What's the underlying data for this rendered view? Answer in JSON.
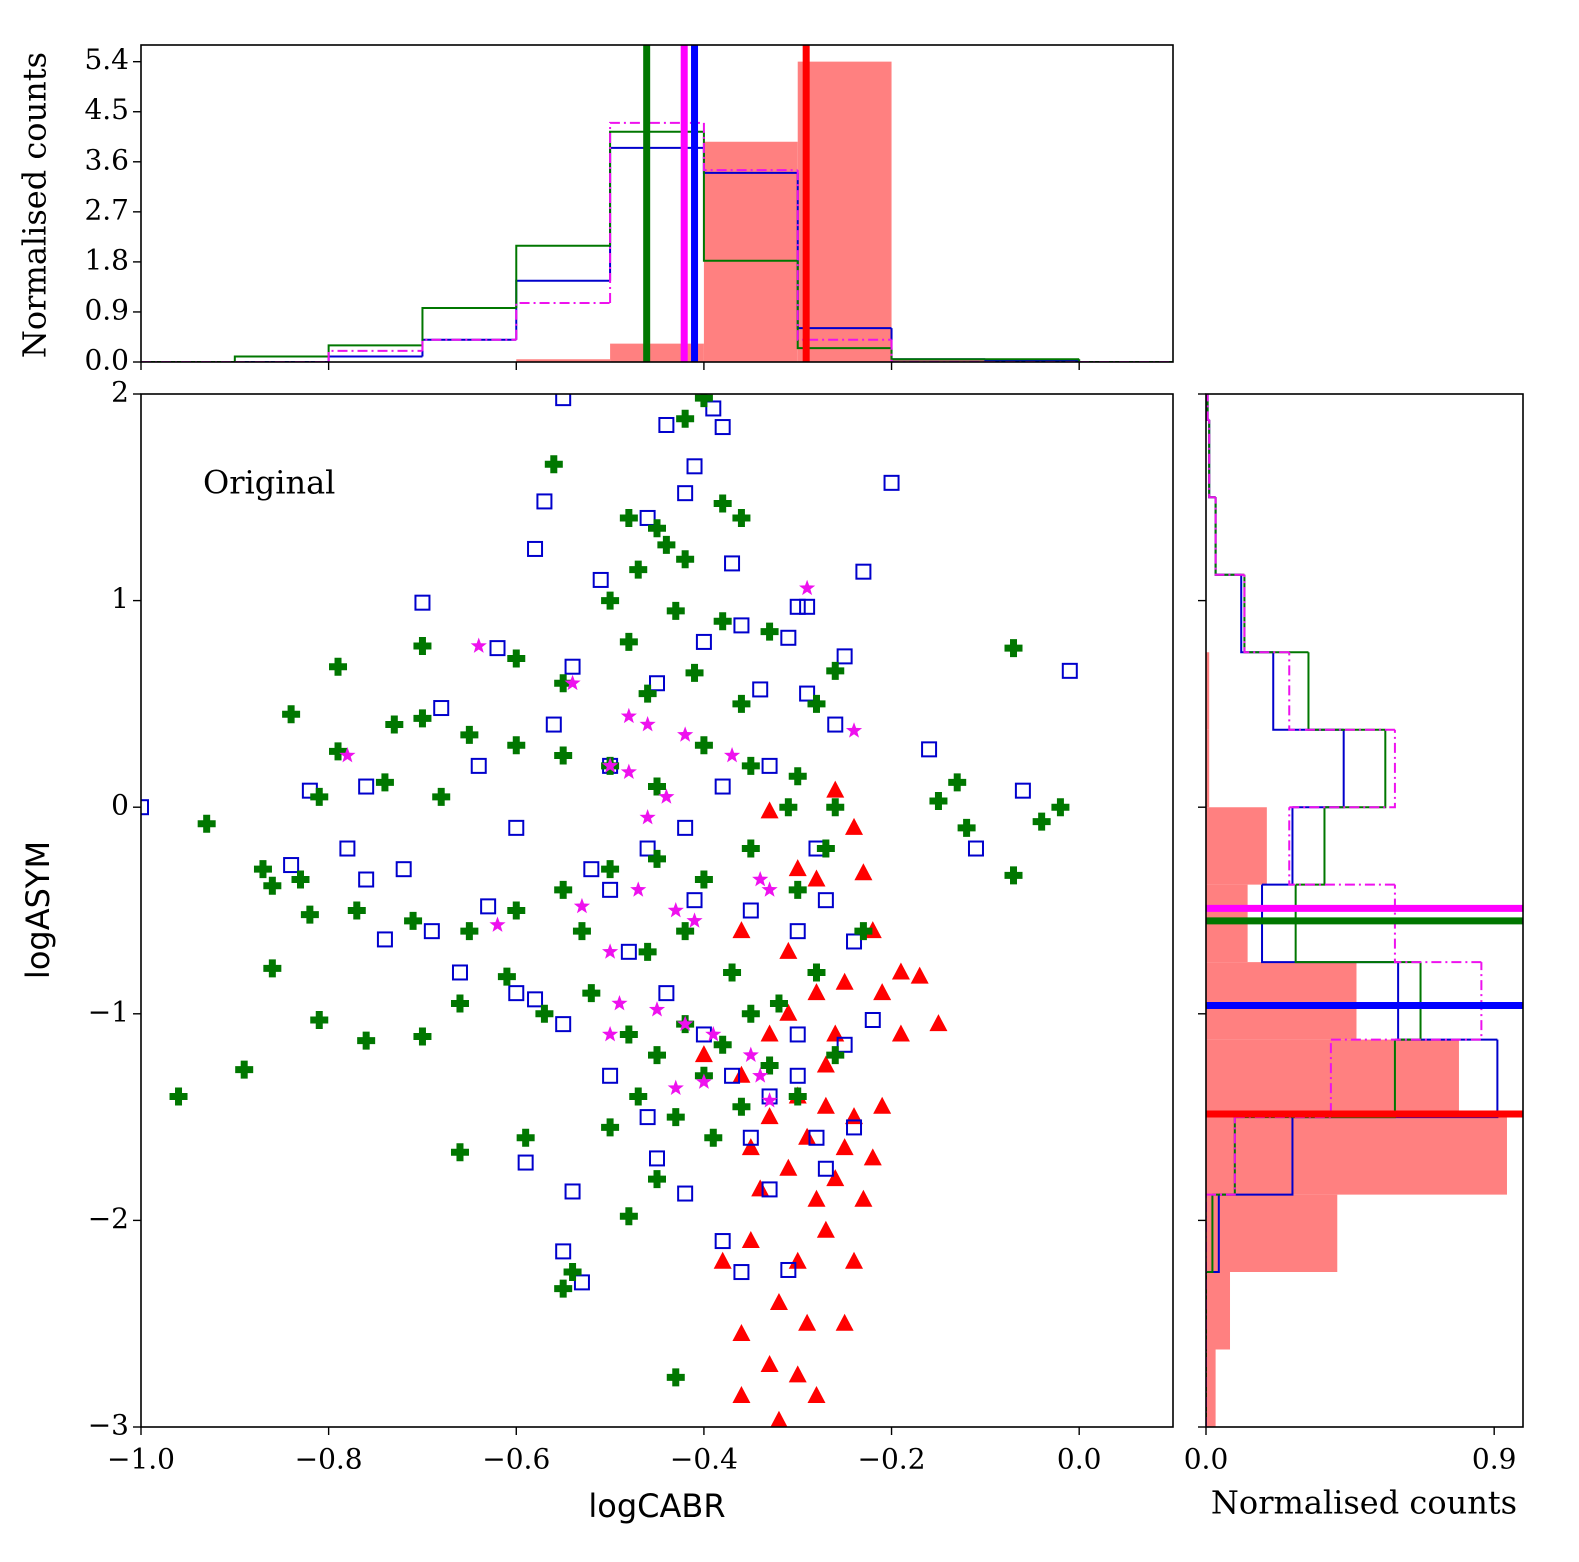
{
  "chart_data": [
    {
      "type": "scatter",
      "xlabel": "logCABR",
      "ylabel": "logASYM",
      "annotation": "Original",
      "xlim": [
        -1.0,
        0.1
      ],
      "ylim": [
        -3,
        2
      ],
      "xticks": [
        {
          "value": -1.0,
          "label": "−1.0"
        },
        {
          "value": -0.8,
          "label": "−0.8"
        },
        {
          "value": -0.6,
          "label": "−0.6"
        },
        {
          "value": -0.4,
          "label": "−0.4"
        },
        {
          "value": -0.2,
          "label": "−0.2"
        },
        {
          "value": 0.0,
          "label": "0.0"
        }
      ],
      "yticks": [
        {
          "value": -3,
          "label": "−3"
        },
        {
          "value": -2,
          "label": "−2"
        },
        {
          "value": -1,
          "label": "−1"
        },
        0,
        1,
        2
      ],
      "series": [
        {
          "color": "#ff0000",
          "marker": "triangle",
          "x": [
            -0.33,
            -0.26,
            -0.3,
            -0.28,
            -0.23,
            -0.24,
            -0.22,
            -0.19,
            -0.17,
            -0.15,
            -0.19,
            -0.21,
            -0.25,
            -0.28,
            -0.31,
            -0.33,
            -0.36,
            -0.3,
            -0.27,
            -0.24,
            -0.22,
            -0.26,
            -0.28,
            -0.31,
            -0.34,
            -0.38,
            -0.35,
            -0.3,
            -0.27,
            -0.24,
            -0.32,
            -0.29,
            -0.25,
            -0.36,
            -0.33,
            -0.3,
            -0.28,
            -0.36,
            -0.32,
            -0.4,
            -0.36,
            -0.31,
            -0.27,
            -0.25,
            -0.23,
            -0.29,
            -0.33,
            -0.35,
            -0.21,
            -0.26
          ],
          "y": [
            -0.02,
            0.08,
            -0.3,
            -0.35,
            -0.32,
            -0.1,
            -0.6,
            -0.8,
            -0.82,
            -1.05,
            -1.1,
            -0.9,
            -0.85,
            -0.9,
            -1.0,
            -1.1,
            -1.3,
            -1.4,
            -1.45,
            -1.5,
            -1.7,
            -1.8,
            -1.9,
            -1.75,
            -1.85,
            -2.2,
            -2.1,
            -2.2,
            -2.05,
            -2.2,
            -2.4,
            -2.5,
            -2.5,
            -2.55,
            -2.7,
            -2.75,
            -2.85,
            -2.85,
            -2.97,
            -1.2,
            -0.6,
            -0.7,
            -1.25,
            -1.65,
            -1.9,
            -1.6,
            -1.5,
            -1.65,
            -1.45,
            -1.1
          ]
        },
        {
          "color": "#0000cc",
          "marker": "square",
          "x": [
            -0.55,
            -0.44,
            -0.38,
            -0.39,
            -0.41,
            -0.42,
            -0.2,
            -0.57,
            -0.58,
            -0.46,
            -0.37,
            -0.23,
            -0.7,
            -0.51,
            -0.3,
            -0.36,
            -0.31,
            -0.29,
            -0.62,
            -0.25,
            -0.01,
            -0.54,
            -0.34,
            -0.29,
            -0.68,
            -0.26,
            -0.16,
            -0.82,
            -0.76,
            -0.06,
            -1.0,
            -0.11,
            -0.84,
            -0.78,
            -0.76,
            -0.72,
            -0.69,
            -0.74,
            -0.63,
            -0.6,
            -0.66,
            -0.58,
            -0.55,
            -0.59,
            -0.54,
            -0.55,
            -0.53,
            -0.45,
            -0.42,
            -0.38,
            -0.36,
            -0.31,
            -0.33,
            -0.28,
            -0.24,
            -0.22,
            -0.25,
            -0.3,
            -0.33,
            -0.37,
            -0.4,
            -0.44,
            -0.48,
            -0.5,
            -0.46,
            -0.42,
            -0.38,
            -0.5,
            -0.56,
            -0.45,
            -0.4,
            -0.35,
            -0.3,
            -0.27,
            -0.24,
            -0.28,
            -0.33,
            -0.41,
            -0.46,
            -0.5,
            -0.35,
            -0.3,
            -0.27,
            -0.52,
            -0.6,
            -0.64
          ],
          "y": [
            1.98,
            1.85,
            1.84,
            1.93,
            1.65,
            1.52,
            1.57,
            1.48,
            1.25,
            1.4,
            1.18,
            1.14,
            0.99,
            1.1,
            0.97,
            0.88,
            0.82,
            0.97,
            0.77,
            0.73,
            0.66,
            0.68,
            0.57,
            0.55,
            0.48,
            0.4,
            0.28,
            0.08,
            0.1,
            0.08,
            0.0,
            -0.2,
            -0.28,
            -0.2,
            -0.35,
            -0.3,
            -0.6,
            -0.64,
            -0.48,
            -0.9,
            -0.8,
            -0.93,
            -1.05,
            -1.72,
            -1.86,
            -2.15,
            -2.3,
            -1.7,
            -1.87,
            -2.1,
            -2.25,
            -2.24,
            -1.85,
            -1.6,
            -1.55,
            -1.03,
            -1.15,
            -1.3,
            -1.4,
            -1.3,
            -1.1,
            -0.9,
            -0.7,
            -0.4,
            -0.2,
            -0.1,
            0.1,
            0.2,
            0.4,
            0.6,
            0.8,
            -0.5,
            -0.6,
            -0.45,
            -0.65,
            -0.2,
            0.2,
            -0.45,
            -1.5,
            -1.3,
            -1.6,
            -1.1,
            -1.75,
            -0.3,
            -0.1,
            0.2
          ]
        },
        {
          "color": "#007700",
          "marker": "plus",
          "x": [
            -0.4,
            -0.42,
            -0.56,
            -0.38,
            -0.48,
            -0.45,
            -0.44,
            -0.36,
            -0.42,
            -0.47,
            -0.5,
            -0.43,
            -0.38,
            -0.33,
            -0.7,
            -0.79,
            -0.07,
            -0.6,
            -0.55,
            -0.48,
            -0.46,
            -0.41,
            -0.36,
            -0.28,
            -0.26,
            -0.84,
            -0.73,
            -0.7,
            -0.65,
            -0.6,
            -0.55,
            -0.5,
            -0.45,
            -0.4,
            -0.35,
            -0.3,
            -0.79,
            -0.81,
            -0.74,
            -0.68,
            -0.93,
            -0.15,
            -0.13,
            -0.02,
            -0.04,
            -0.12,
            -0.87,
            -0.83,
            -0.86,
            -0.77,
            -0.82,
            -0.71,
            -0.65,
            -0.6,
            -0.55,
            -0.5,
            -0.45,
            -0.4,
            -0.35,
            -0.3,
            -0.86,
            -0.81,
            -0.76,
            -0.7,
            -0.66,
            -0.61,
            -0.57,
            -0.52,
            -0.48,
            -0.45,
            -0.42,
            -0.4,
            -0.38,
            -0.35,
            -0.33,
            -0.47,
            -0.5,
            -0.43,
            -0.39,
            -0.36,
            -0.89,
            -0.96,
            -0.66,
            -0.59,
            -0.48,
            -0.45,
            -0.54,
            -0.55,
            -0.43,
            -0.07,
            -0.23,
            -0.28,
            -0.3,
            -0.26,
            -0.53,
            -0.46,
            -0.42,
            -0.37,
            -0.32,
            -0.27,
            -0.31,
            -0.26
          ],
          "y": [
            1.98,
            1.88,
            1.66,
            1.47,
            1.4,
            1.35,
            1.27,
            1.4,
            1.2,
            1.15,
            1.0,
            0.95,
            0.9,
            0.85,
            0.78,
            0.68,
            0.77,
            0.72,
            0.6,
            0.8,
            0.55,
            0.65,
            0.5,
            0.5,
            0.66,
            0.45,
            0.4,
            0.43,
            0.35,
            0.3,
            0.25,
            0.2,
            0.1,
            0.3,
            0.2,
            0.15,
            0.27,
            0.05,
            0.12,
            0.05,
            -0.08,
            0.03,
            0.12,
            0.0,
            -0.07,
            -0.1,
            -0.3,
            -0.35,
            -0.38,
            -0.5,
            -0.52,
            -0.55,
            -0.6,
            -0.5,
            -0.4,
            -0.3,
            -0.25,
            -0.35,
            -0.2,
            -0.4,
            -0.78,
            -1.03,
            -1.13,
            -1.11,
            -0.95,
            -0.82,
            -1.0,
            -0.9,
            -1.1,
            -1.2,
            -1.05,
            -1.3,
            -1.15,
            -1.0,
            -1.25,
            -1.4,
            -1.55,
            -1.5,
            -1.6,
            -1.45,
            -1.27,
            -1.4,
            -1.67,
            -1.6,
            -1.98,
            -1.8,
            -2.25,
            -2.33,
            -2.76,
            -0.33,
            -0.6,
            -0.8,
            -1.4,
            -1.2,
            -0.6,
            -0.7,
            -0.6,
            -0.8,
            -0.95,
            -0.2,
            0.0,
            0.0
          ]
        },
        {
          "color": "#ee11ee",
          "marker": "star",
          "x": [
            -0.29,
            -0.64,
            -0.78,
            -0.24,
            -0.48,
            -0.46,
            -0.54,
            -0.42,
            -0.37,
            -0.5,
            -0.48,
            -0.44,
            -0.62,
            -0.46,
            -0.47,
            -0.43,
            -0.34,
            -0.33,
            -0.41,
            -0.53,
            -0.5,
            -0.49,
            -0.45,
            -0.42,
            -0.39,
            -0.35,
            -0.34,
            -0.43,
            -0.4,
            -0.5,
            -0.33
          ],
          "y": [
            1.06,
            0.78,
            0.25,
            0.37,
            0.44,
            0.4,
            0.6,
            0.35,
            0.25,
            0.2,
            0.17,
            0.05,
            -0.57,
            -0.05,
            -0.4,
            -0.5,
            -0.35,
            -0.4,
            -0.55,
            -0.48,
            -0.7,
            -0.95,
            -0.98,
            -1.05,
            -1.1,
            -1.2,
            -1.3,
            -1.36,
            -1.33,
            -1.1,
            -1.42
          ]
        }
      ]
    },
    {
      "type": "histogram",
      "orientation": "vertical",
      "ylabel": "Normalised counts",
      "show_xtick_labels": false,
      "xlim": [
        -1.0,
        0.1
      ],
      "ylim": [
        0,
        5.7
      ],
      "xticks": [
        -1.0,
        -0.8,
        -0.6,
        -0.4,
        -0.2,
        0.0
      ],
      "yticks": [
        {
          "value": 0,
          "label": "0.0"
        },
        0.9,
        1.8,
        2.7,
        3.6,
        4.5,
        5.4
      ],
      "bins": [
        -1.0,
        -0.9,
        -0.8,
        -0.7,
        -0.6,
        -0.5,
        -0.4,
        -0.3,
        -0.2,
        -0.1,
        0.0,
        0.1
      ],
      "series": [
        {
          "color": "#ff8080",
          "style": "filled",
          "values": [
            0,
            0,
            0,
            0,
            0.05,
            0.33,
            3.96,
            5.4,
            0.05,
            0,
            0
          ]
        },
        {
          "color": "#0000cc",
          "style": "step",
          "linestyle": "solid",
          "values": [
            0,
            0,
            0.1,
            0.4,
            1.46,
            3.85,
            3.4,
            0.61,
            0.05,
            0.02,
            0
          ]
        },
        {
          "color": "#007700",
          "style": "step",
          "linestyle": "solid",
          "values": [
            0,
            0.1,
            0.3,
            0.97,
            2.09,
            4.14,
            1.82,
            0.25,
            0.05,
            0.05,
            0
          ]
        },
        {
          "color": "#ee11ee",
          "style": "step",
          "linestyle": "dashdot",
          "values": [
            0,
            0,
            0.2,
            0.4,
            1.06,
            4.3,
            3.45,
            0.4,
            0,
            0,
            0
          ]
        }
      ],
      "medians": [
        {
          "color": "#007700",
          "value": -0.461
        },
        {
          "color": "#ff00ff",
          "value": -0.421
        },
        {
          "color": "#0000ff",
          "value": -0.41
        },
        {
          "color": "#ff0000",
          "value": -0.291
        }
      ]
    },
    {
      "type": "histogram",
      "orientation": "horizontal",
      "xlabel": "Normalised counts",
      "show_ytick_labels": false,
      "xlim": [
        0,
        0.99
      ],
      "ylim": [
        -3,
        2
      ],
      "xticks": [
        {
          "value": 0,
          "label": "0.0"
        },
        0.9
      ],
      "yticks": [
        -3,
        -2,
        -1,
        0,
        1,
        2
      ],
      "bins": [
        -3.0,
        -2.625,
        -2.25,
        -1.875,
        -1.5,
        -1.125,
        -0.75,
        -0.375,
        0.0,
        0.375,
        0.75,
        1.125,
        1.5,
        1.875,
        2.25
      ],
      "series": [
        {
          "color": "#ff8080",
          "style": "filled",
          "values": [
            0.03,
            0.075,
            0.41,
            0.94,
            0.79,
            0.47,
            0.13,
            0.19,
            0.01,
            0.01,
            0,
            0,
            0,
            0
          ]
        },
        {
          "color": "#0000cc",
          "style": "step",
          "linestyle": "solid",
          "values": [
            0,
            0,
            0.04,
            0.27,
            0.91,
            0.6,
            0.175,
            0.27,
            0.43,
            0.21,
            0.11,
            0.03,
            0.01,
            0.005
          ]
        },
        {
          "color": "#007700",
          "style": "step",
          "linestyle": "solid",
          "values": [
            0,
            0,
            0.02,
            0.09,
            0.59,
            0.67,
            0.28,
            0.37,
            0.56,
            0.32,
            0.12,
            0.03,
            0.01,
            0.005
          ]
        },
        {
          "color": "#ee11ee",
          "style": "step",
          "linestyle": "dashdot",
          "values": [
            0,
            0,
            0,
            0.09,
            0.39,
            0.86,
            0.59,
            0.26,
            0.59,
            0.26,
            0.12,
            0.03,
            0.01,
            0.005
          ]
        }
      ],
      "medians": [
        {
          "color": "#ff00ff",
          "value": -0.49
        },
        {
          "color": "#007700",
          "value": -0.55
        },
        {
          "color": "#0000ff",
          "value": -0.96
        },
        {
          "color": "#ff0000",
          "value": -1.485
        }
      ]
    }
  ]
}
